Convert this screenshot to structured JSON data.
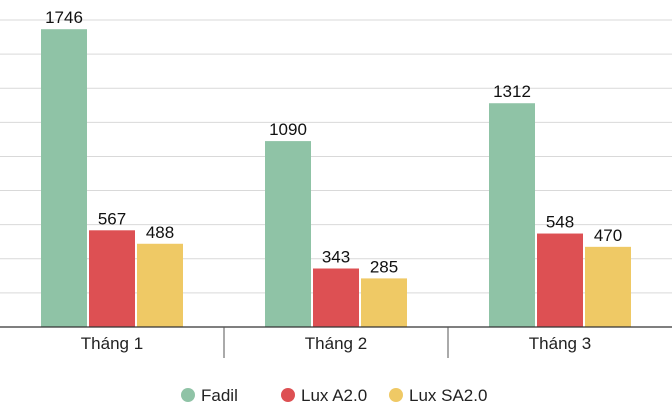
{
  "chart_data": {
    "type": "bar",
    "categories": [
      "Tháng 1",
      "Tháng 2",
      "Tháng 3"
    ],
    "series": [
      {
        "name": "Fadil",
        "color": "#8fc3a6",
        "values": [
          1746,
          1090,
          1312
        ]
      },
      {
        "name": "Lux A2.0",
        "color": "#dd5053",
        "values": [
          567,
          343,
          548
        ]
      },
      {
        "name": "Lux SA2.0",
        "color": "#efc965",
        "values": [
          488,
          285,
          470
        ]
      }
    ],
    "ylim": [
      0,
      1800
    ],
    "grid": true,
    "legend_position": "bottom-center"
  }
}
